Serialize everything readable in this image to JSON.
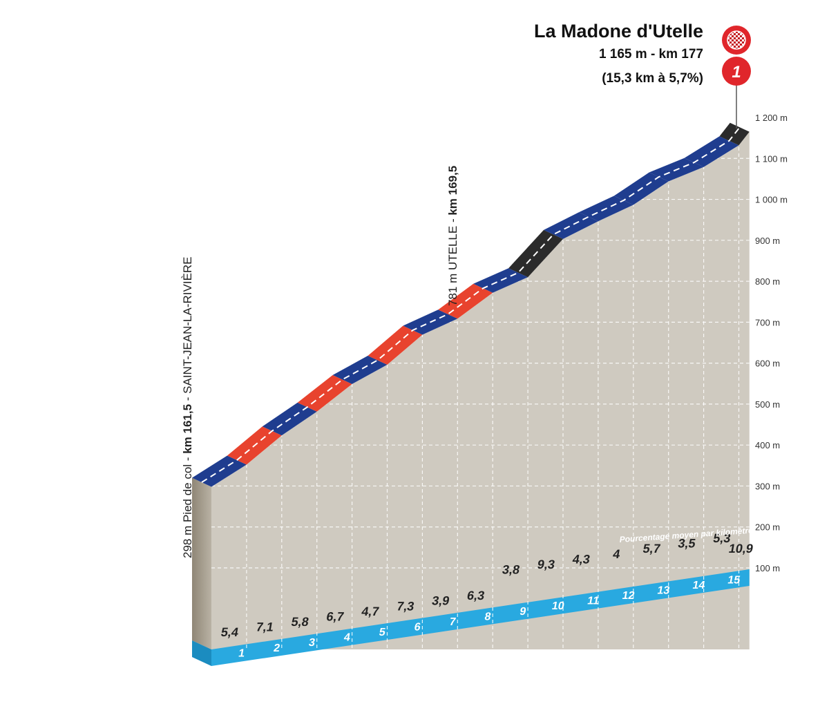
{
  "summit": {
    "name": "La Madone d'Utelle",
    "altitude_km": "1 165 m - km 177",
    "length_grade": "(15,3 km à 5,7%)",
    "category": "1"
  },
  "waypoints": [
    {
      "alt": "298 m Pied de col - ",
      "km": "km 161,5",
      "name": " - SAINT-JEAN-LA-RIVIÈRE"
    },
    {
      "alt": "781 m UTELLE - ",
      "km": "km 169,5",
      "name": ""
    }
  ],
  "legend_note": "Pourcentage moyen par kilomètre",
  "colors": {
    "blue": "#1f3d8f",
    "red": "#e8432e",
    "black": "#2b2b2b",
    "terrain": "#cfcac0",
    "baseline": "#29a9e0",
    "summit_badge": "#e0262b"
  },
  "chart_data": {
    "type": "area",
    "title": "La Madone d'Utelle",
    "xlabel": "",
    "ylabel": "",
    "x_ticks": [
      "1",
      "2",
      "3",
      "4",
      "5",
      "6",
      "7",
      "8",
      "9",
      "10",
      "11",
      "12",
      "13",
      "14",
      "15"
    ],
    "y_ticks": [
      "100 m",
      "200 m",
      "300 m",
      "400 m",
      "500 m",
      "600 m",
      "700 m",
      "800 m",
      "900 m",
      "1 000 m",
      "1 100 m",
      "1 200 m"
    ],
    "ylim": [
      100,
      1200
    ],
    "xlim": [
      0,
      15.3
    ],
    "grid": true,
    "grades": [
      {
        "label": "5,4",
        "grade": 5.4,
        "color": "blue"
      },
      {
        "label": "7,1",
        "grade": 7.1,
        "color": "red"
      },
      {
        "label": "5,8",
        "grade": 5.8,
        "color": "blue"
      },
      {
        "label": "6,7",
        "grade": 6.7,
        "color": "red"
      },
      {
        "label": "4,7",
        "grade": 4.7,
        "color": "blue"
      },
      {
        "label": "7,3",
        "grade": 7.3,
        "color": "red"
      },
      {
        "label": "3,9",
        "grade": 3.9,
        "color": "blue"
      },
      {
        "label": "6,3",
        "grade": 6.3,
        "color": "red"
      },
      {
        "label": "3,8",
        "grade": 3.8,
        "color": "blue"
      },
      {
        "label": "9,3",
        "grade": 9.3,
        "color": "black"
      },
      {
        "label": "4,3",
        "grade": 4.3,
        "color": "blue"
      },
      {
        "label": "4",
        "grade": 4.0,
        "color": "blue"
      },
      {
        "label": "5,7",
        "grade": 5.7,
        "color": "blue"
      },
      {
        "label": "3,5",
        "grade": 3.5,
        "color": "blue"
      },
      {
        "label": "5,3",
        "grade": 5.3,
        "color": "blue"
      },
      {
        "label": "10,9",
        "grade": 10.9,
        "color": "black"
      }
    ],
    "start_altitude": 298,
    "summit_altitude": 1165
  }
}
